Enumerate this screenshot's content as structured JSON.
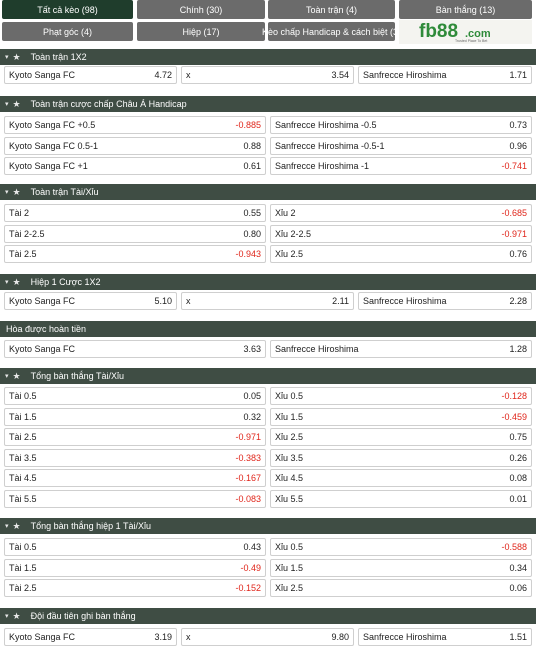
{
  "tabs": [
    {
      "label": "Tất cả kèo (98)",
      "active": true
    },
    {
      "label": "Chính (30)"
    },
    {
      "label": "Toàn trận (4)"
    },
    {
      "label": "Bàn thắng (13)"
    },
    {
      "label": "Phạt góc (4)"
    },
    {
      "label": "Hiệp (17)"
    },
    {
      "label": "Kèo chấp Handicap & cách biệt (3)"
    }
  ],
  "logo": {
    "text": "fb88",
    "suffix": ".com",
    "tagline": "Trusted Place To Bet",
    "accent": "#2f8b3a"
  },
  "colors": {
    "header": "#3f4d44",
    "active_tab": "#1f3d2c",
    "tab": "#6b6b6b",
    "negative": "#e0261b"
  },
  "sections": [
    {
      "title": "Toàn trận 1X2",
      "rows": [
        {
          "type": "three",
          "cells": [
            [
              "Kyoto Sanga FC",
              "4.72"
            ],
            [
              "x",
              "3.54"
            ],
            [
              "Sanfrecce Hiroshima",
              "1.71"
            ]
          ]
        }
      ]
    },
    {
      "title": "Toàn trận cược chấp Châu Á Handicap",
      "rows": [
        {
          "type": "two",
          "cells": [
            [
              "Kyoto Sanga FC +0.5",
              "-0.885"
            ],
            [
              "Sanfrecce Hiroshima -0.5",
              "0.73"
            ]
          ]
        },
        {
          "type": "two",
          "cells": [
            [
              "Kyoto Sanga FC 0.5-1",
              "0.88"
            ],
            [
              "Sanfrecce Hiroshima -0.5-1",
              "0.96"
            ]
          ]
        },
        {
          "type": "two",
          "cells": [
            [
              "Kyoto Sanga FC +1",
              "0.61"
            ],
            [
              "Sanfrecce Hiroshima -1",
              "-0.741"
            ]
          ]
        }
      ]
    },
    {
      "title": "Toàn trận Tài/Xỉu",
      "rows": [
        {
          "type": "two",
          "cells": [
            [
              "Tài 2",
              "0.55"
            ],
            [
              "Xỉu 2",
              "-0.685"
            ]
          ]
        },
        {
          "type": "two",
          "cells": [
            [
              "Tài 2-2.5",
              "0.80"
            ],
            [
              "Xỉu 2-2.5",
              "-0.971"
            ]
          ]
        },
        {
          "type": "two",
          "cells": [
            [
              "Tài 2.5",
              "-0.943"
            ],
            [
              "Xỉu 2.5",
              "0.76"
            ]
          ]
        }
      ]
    },
    {
      "title": "Hiệp 1 Cược 1X2",
      "rows": [
        {
          "type": "three",
          "cells": [
            [
              "Kyoto Sanga FC",
              "5.10"
            ],
            [
              "x",
              "2.11"
            ],
            [
              "Sanfrecce Hiroshima",
              "2.28"
            ]
          ]
        }
      ]
    },
    {
      "title": "Hòa được hoàn tiền",
      "noicons": true,
      "rows": [
        {
          "type": "two",
          "cells": [
            [
              "Kyoto Sanga FC",
              "3.63"
            ],
            [
              "Sanfrecce Hiroshima",
              "1.28"
            ]
          ]
        }
      ]
    },
    {
      "title": "Tổng bàn thắng Tài/Xỉu",
      "rows": [
        {
          "type": "two",
          "cells": [
            [
              "Tài 0.5",
              "0.05"
            ],
            [
              "Xỉu 0.5",
              "-0.128"
            ]
          ]
        },
        {
          "type": "two",
          "cells": [
            [
              "Tài 1.5",
              "0.32"
            ],
            [
              "Xỉu 1.5",
              "-0.459"
            ]
          ]
        },
        {
          "type": "two",
          "cells": [
            [
              "Tài 2.5",
              "-0.971"
            ],
            [
              "Xỉu 2.5",
              "0.75"
            ]
          ]
        },
        {
          "type": "two",
          "cells": [
            [
              "Tài 3.5",
              "-0.383"
            ],
            [
              "Xỉu 3.5",
              "0.26"
            ]
          ]
        },
        {
          "type": "two",
          "cells": [
            [
              "Tài 4.5",
              "-0.167"
            ],
            [
              "Xỉu 4.5",
              "0.08"
            ]
          ]
        },
        {
          "type": "two",
          "cells": [
            [
              "Tài 5.5",
              "-0.083"
            ],
            [
              "Xỉu 5.5",
              "0.01"
            ]
          ]
        }
      ]
    },
    {
      "title": "Tổng bàn thắng hiệp 1 Tài/Xỉu",
      "rows": [
        {
          "type": "two",
          "cells": [
            [
              "Tài 0.5",
              "0.43"
            ],
            [
              "Xỉu 0.5",
              "-0.588"
            ]
          ]
        },
        {
          "type": "two",
          "cells": [
            [
              "Tài 1.5",
              "-0.49"
            ],
            [
              "Xỉu 1.5",
              "0.34"
            ]
          ]
        },
        {
          "type": "two",
          "cells": [
            [
              "Tài 2.5",
              "-0.152"
            ],
            [
              "Xỉu 2.5",
              "0.06"
            ]
          ]
        }
      ]
    },
    {
      "title": "Đội đầu tiên ghi bàn thắng",
      "rows": [
        {
          "type": "three",
          "cells": [
            [
              "Kyoto Sanga FC",
              "3.19"
            ],
            [
              "x",
              "9.80"
            ],
            [
              "Sanfrecce Hiroshima",
              "1.51"
            ]
          ]
        }
      ]
    }
  ]
}
